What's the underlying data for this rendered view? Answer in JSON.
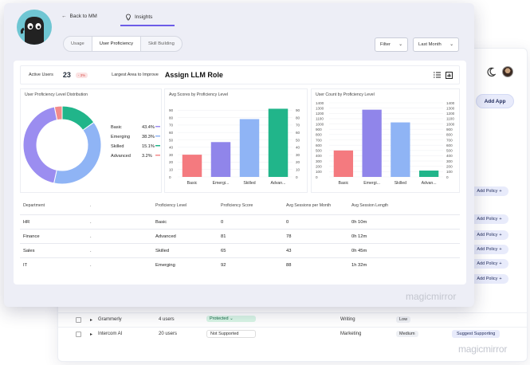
{
  "back_window": {
    "add_app_label": "Add App",
    "add_policy_label": "Add Policy",
    "rows": [
      {
        "name": "Grammerly",
        "users": "4 users",
        "status": "Protected",
        "category": "Writing",
        "risk": "Low",
        "action": ""
      },
      {
        "name": "Intercom AI",
        "users": "20 users",
        "status": "Not Supported",
        "category": "Marketing",
        "risk": "Medium",
        "action": "Suggest Supporting"
      }
    ],
    "logo": "magicmirror"
  },
  "nav": {
    "back_label": "Back to MM",
    "insights_label": "Insights"
  },
  "tabs": [
    {
      "label": "Usage"
    },
    {
      "label": "User Proficiency"
    },
    {
      "label": "Skill Building"
    }
  ],
  "filters": {
    "filter_label": "Filter",
    "period_label": "Last Month"
  },
  "summary": {
    "active_users_label": "Active Users",
    "active_users_value": "23",
    "active_users_change": "- 3%",
    "area_label": "Largest Area to Improve",
    "area_value": "Assign LLM Role"
  },
  "chart_data": [
    {
      "type": "pie",
      "title": "User Proficiency Level Distribution",
      "categories": [
        "Basic",
        "Emerging",
        "Skilled",
        "Advanced"
      ],
      "values": [
        43.4,
        38.3,
        15.1,
        3.2
      ],
      "value_labels": [
        "43.4%",
        "38.3%",
        "15.1%",
        "3.2%"
      ],
      "colors": [
        "#9b8df0",
        "#8fb4f5",
        "#21b58a",
        "#f38b8b"
      ]
    },
    {
      "type": "bar",
      "title": "Avg Scores by Proficiency Level",
      "categories": [
        "Basic",
        "Emergi...",
        "Skilled",
        "Advan..."
      ],
      "values": [
        30,
        47,
        78,
        92
      ],
      "colors": [
        "#f47a7f",
        "#9085ea",
        "#8fb4f5",
        "#21b58a"
      ],
      "ylim": [
        0,
        100
      ],
      "yticks": [
        0,
        10,
        20,
        30,
        40,
        50,
        60,
        70,
        80,
        90
      ]
    },
    {
      "type": "bar",
      "title": "User Count by Proficiency Level",
      "categories": [
        "Basic",
        "Emergi...",
        "Skilled",
        "Advan..."
      ],
      "values": [
        500,
        1270,
        1030,
        120
      ],
      "colors": [
        "#f47a7f",
        "#9085ea",
        "#8fb4f5",
        "#21b58a"
      ],
      "ylim": [
        0,
        1400
      ],
      "yticks": [
        0,
        100,
        200,
        300,
        400,
        500,
        600,
        700,
        800,
        900,
        1000,
        1100,
        1200,
        1300,
        1400
      ]
    }
  ],
  "table": {
    "headers": [
      "Department",
      "Proficiency Level",
      "Proficiency Score",
      "Avg Sessions per Month",
      "Avg Session Length"
    ],
    "rows": [
      {
        "dept": "HR",
        "level": "Basic",
        "score": "0",
        "sessions": "0",
        "length": "0h 10m"
      },
      {
        "dept": "Finance",
        "level": "Advanced",
        "score": "81",
        "sessions": "78",
        "length": "0h 12m"
      },
      {
        "dept": "Sales",
        "level": "Skilled",
        "score": "65",
        "sessions": "43",
        "length": "0h 45m"
      },
      {
        "dept": "IT",
        "level": "Emerging",
        "score": "92",
        "sessions": "88",
        "length": "1h 32m"
      }
    ]
  },
  "front_logo": "magicmirror"
}
